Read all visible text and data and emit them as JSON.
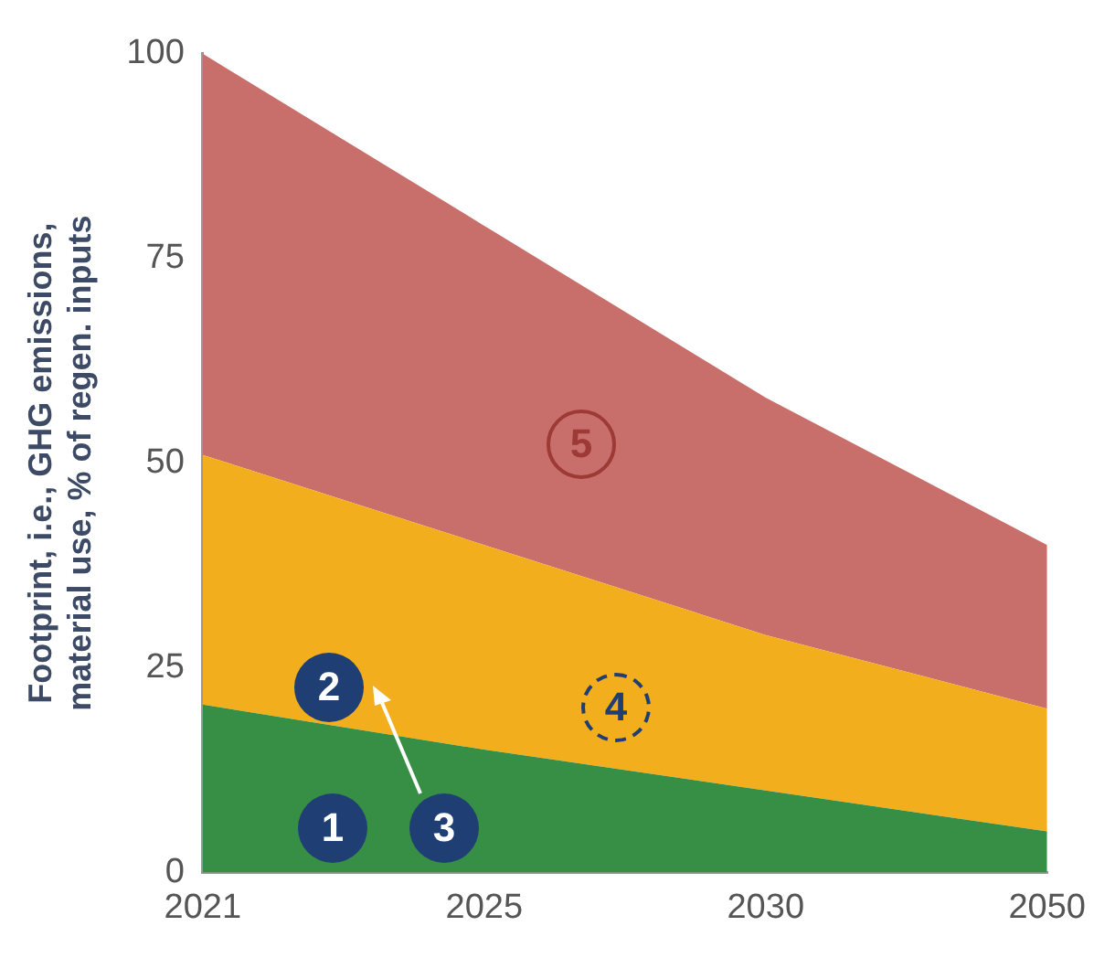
{
  "chart_data": {
    "type": "area",
    "stacked": true,
    "categories": [
      "2021",
      "2025",
      "2030",
      "2050"
    ],
    "ylabel": "Footprint, i.e., GHG emissions,\nmaterial use, % of regen. inputs",
    "ylim": [
      0,
      100
    ],
    "yticks": [
      0,
      25,
      50,
      75,
      100
    ],
    "grid": false,
    "legend": false,
    "series": [
      {
        "color": "#378e45",
        "values": [
          20.5,
          15,
          10,
          5
        ]
      },
      {
        "color": "#f2ae1c",
        "values": [
          30.5,
          25,
          19,
          15
        ]
      },
      {
        "color": "#c96f6b",
        "values": [
          49,
          39,
          29,
          20
        ]
      }
    ],
    "annotations": [
      "1",
      "2",
      "3",
      "4",
      "5"
    ]
  }
}
